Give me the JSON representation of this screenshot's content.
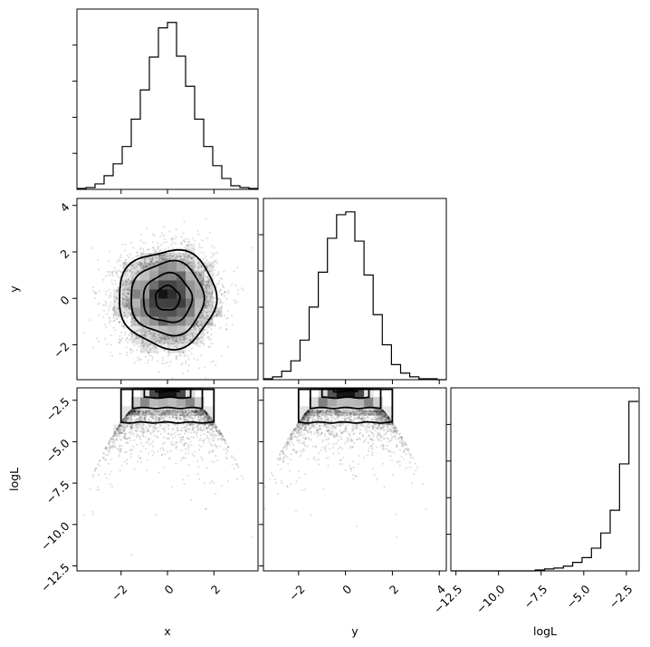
{
  "chart_data": [
    {
      "type": "corner",
      "variables": [
        "x",
        "y",
        "logL"
      ],
      "axis_labels": {
        "x": "x",
        "y": "y",
        "logL": "logL"
      },
      "ranges": {
        "x": [
          -3.9,
          3.9
        ],
        "y": [
          -3.5,
          4.3
        ],
        "logL": [
          -12.8,
          -1.75
        ]
      },
      "ticks": {
        "x": [
          {
            "v": -2,
            "label": "−2"
          },
          {
            "v": 0,
            "label": "0"
          },
          {
            "v": 2,
            "label": "2"
          }
        ],
        "y": [
          {
            "v": -2,
            "label": "−2"
          },
          {
            "v": 0,
            "label": "0"
          },
          {
            "v": 2,
            "label": "2"
          },
          {
            "v": 4,
            "label": "4"
          }
        ],
        "logL": [
          {
            "v": -12.5,
            "label": "−12.5"
          },
          {
            "v": -10.0,
            "label": "−10.0"
          },
          {
            "v": -7.5,
            "label": "−7.5"
          },
          {
            "v": -5.0,
            "label": "−5.0"
          },
          {
            "v": -2.5,
            "label": "−2.5"
          }
        ]
      },
      "histograms": {
        "x": {
          "bin_edges": [
            -3.9,
            -3.51,
            -3.12,
            -2.73,
            -2.34,
            -1.95,
            -1.56,
            -1.17,
            -0.78,
            -0.39,
            0.0,
            0.39,
            0.78,
            1.17,
            1.56,
            1.95,
            2.34,
            2.73,
            3.12,
            3.51,
            3.9
          ],
          "counts": [
            1,
            2,
            6,
            15,
            28,
            47,
            77,
            109,
            145,
            177,
            183,
            146,
            113,
            77,
            47,
            26,
            12,
            4,
            2,
            1
          ]
        },
        "y": {
          "bin_edges": [
            -3.5,
            -3.11,
            -2.72,
            -2.33,
            -1.94,
            -1.55,
            -1.16,
            -0.77,
            -0.38,
            0.01,
            0.4,
            0.79,
            1.18,
            1.57,
            1.96,
            2.35,
            2.74,
            3.13,
            3.52,
            3.91,
            4.3
          ],
          "counts": [
            1,
            3,
            9,
            20,
            42,
            77,
            114,
            150,
            175,
            178,
            147,
            111,
            69,
            37,
            16,
            7,
            3,
            1,
            1,
            0
          ]
        },
        "logL": {
          "bin_edges": [
            -12.8,
            -12.25,
            -11.7,
            -11.15,
            -10.6,
            -10.05,
            -9.5,
            -8.95,
            -8.4,
            -7.85,
            -7.3,
            -6.75,
            -6.2,
            -5.65,
            -5.1,
            -4.55,
            -4.0,
            -3.45,
            -2.9,
            -2.35,
            -1.8
          ],
          "counts": [
            0,
            0,
            0,
            0,
            0,
            0,
            0,
            0,
            0,
            1,
            2,
            3,
            5,
            9,
            14,
            24,
            40,
            64,
            113,
            179
          ]
        }
      },
      "contour_levels_sigma": [
        0.5,
        1.0,
        1.5,
        2.0
      ],
      "scatter_distribution": {
        "x": {
          "mean": 0.0,
          "sd": 1.0
        },
        "y": {
          "mean": 0.0,
          "sd": 1.0
        },
        "logL": "-0.5*(x^2+y^2)-1.84"
      }
    }
  ]
}
